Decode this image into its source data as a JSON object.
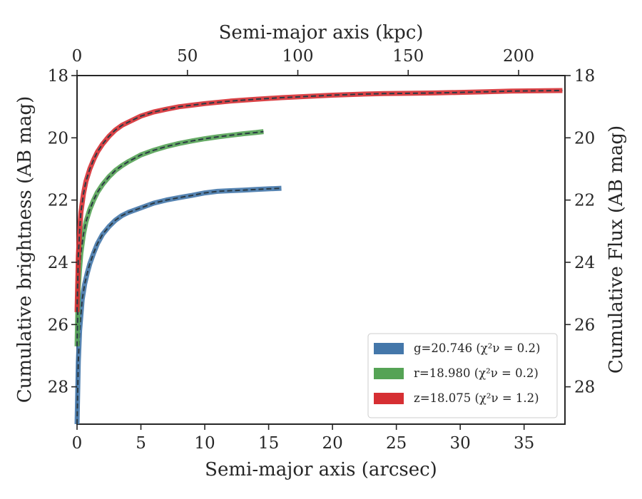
{
  "chart_data": {
    "type": "line",
    "xlabel": "Semi-major axis (arcsec)",
    "ylabel": "Cumulative brightness (AB mag)",
    "x2label": "Semi-major axis (kpc)",
    "y2label": "Cumulative Flux (AB mag)",
    "xlim": [
      0,
      38.2
    ],
    "ylim": [
      29.2,
      18
    ],
    "x2lim": [
      0,
      221
    ],
    "y_inverted": true,
    "xticks": [
      0,
      5,
      10,
      15,
      20,
      25,
      30,
      35
    ],
    "yticks": [
      18,
      20,
      22,
      24,
      26,
      28
    ],
    "x2ticks": [
      0,
      50,
      100,
      150,
      200
    ],
    "grid": false,
    "legend_position": "lower-right",
    "series": [
      {
        "name": "g=20.746",
        "chi2_label": "(χ²ν = 0.2)",
        "color": "#4477aa",
        "x": [
          0,
          0.1,
          0.2,
          0.4,
          0.6,
          0.8,
          1.0,
          1.3,
          1.6,
          2.0,
          2.5,
          3.0,
          3.5,
          4.0,
          5.0,
          6.0,
          7.0,
          8.0,
          9.0,
          10.0,
          11.0,
          12.0,
          13.0,
          14.0,
          15.0,
          16.0
        ],
        "y": [
          29.2,
          27.2,
          26.2,
          25.2,
          24.7,
          24.35,
          24.05,
          23.7,
          23.4,
          23.1,
          22.85,
          22.65,
          22.5,
          22.4,
          22.25,
          22.1,
          22.0,
          21.92,
          21.85,
          21.77,
          21.72,
          21.7,
          21.68,
          21.66,
          21.64,
          21.62
        ]
      },
      {
        "name": "r=18.980",
        "chi2_label": "(χ²ν = 0.2)",
        "color": "#55a355",
        "x": [
          0,
          0.1,
          0.2,
          0.3,
          0.5,
          0.7,
          1.0,
          1.3,
          1.6,
          2.0,
          2.5,
          3.0,
          3.5,
          4.0,
          5.0,
          6.0,
          7.0,
          8.0,
          9.0,
          10.0,
          11.0,
          12.0,
          13.0,
          14.0,
          14.6
        ],
        "y": [
          26.7,
          24.8,
          24.2,
          23.7,
          23.1,
          22.7,
          22.3,
          22.0,
          21.75,
          21.5,
          21.25,
          21.05,
          20.9,
          20.77,
          20.55,
          20.4,
          20.28,
          20.18,
          20.1,
          20.03,
          19.97,
          19.92,
          19.87,
          19.83,
          19.8
        ]
      },
      {
        "name": "z=18.075",
        "chi2_label": "(χ²ν = 1.2)",
        "color": "#d62f33",
        "x": [
          0,
          0.1,
          0.2,
          0.3,
          0.5,
          0.7,
          1.0,
          1.3,
          1.6,
          2.0,
          2.5,
          3.0,
          3.5,
          4.0,
          5.0,
          6.0,
          7.0,
          8.0,
          9.0,
          10.0,
          12.0,
          14.0,
          16.0,
          18.0,
          20.0,
          22.0,
          24.0,
          26.0,
          28.0,
          30.0,
          32.0,
          34.0,
          36.0,
          38.0
        ],
        "y": [
          25.6,
          23.8,
          23.0,
          22.4,
          21.8,
          21.4,
          21.0,
          20.7,
          20.45,
          20.2,
          19.95,
          19.75,
          19.6,
          19.5,
          19.3,
          19.17,
          19.08,
          19.0,
          18.95,
          18.9,
          18.82,
          18.76,
          18.71,
          18.67,
          18.63,
          18.6,
          18.58,
          18.57,
          18.56,
          18.54,
          18.52,
          18.5,
          18.49,
          18.48
        ]
      }
    ]
  }
}
